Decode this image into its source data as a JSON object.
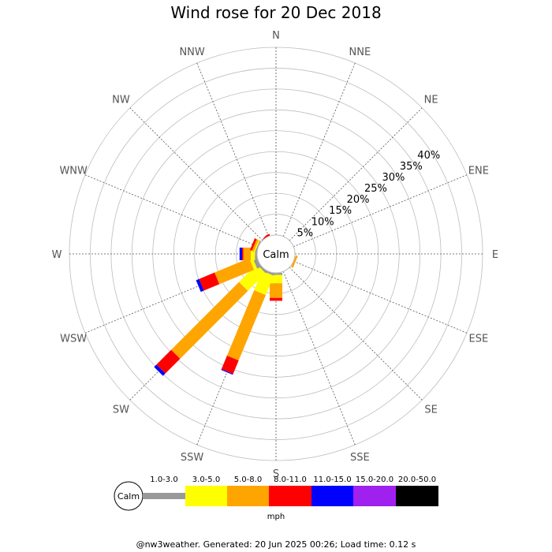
{
  "chart_data": {
    "type": "windrose",
    "title": "Wind rose for 20 Dec 2018",
    "directions": [
      "N",
      "NNE",
      "NE",
      "ENE",
      "E",
      "ESE",
      "SE",
      "SSE",
      "S",
      "SSW",
      "SW",
      "WSW",
      "W",
      "WNW",
      "NW",
      "NNW"
    ],
    "radial_ticks": [
      5,
      10,
      15,
      20,
      25,
      30,
      35,
      40
    ],
    "radial_tick_labels": [
      "5%",
      "10%",
      "15%",
      "20%",
      "25%",
      "30%",
      "35%",
      "40%"
    ],
    "radial_max": 45,
    "center_label": "Calm",
    "speed_bins": [
      "1.0-3.0",
      "3.0-5.0",
      "5.0-8.0",
      "8.0-11.0",
      "11.0-15.0",
      "15.0-20.0",
      "20.0-50.0"
    ],
    "speed_colors": [
      "#999999",
      "#ffff00",
      "#ffa500",
      "#ff0000",
      "#0000ff",
      "#a020f0",
      "#000000"
    ],
    "speed_unit": "mph",
    "series": [
      {
        "direction": "N",
        "values": [
          0,
          0,
          0,
          0,
          0,
          0,
          0
        ]
      },
      {
        "direction": "NNE",
        "values": [
          0,
          0,
          0,
          0,
          0,
          0,
          0
        ]
      },
      {
        "direction": "NE",
        "values": [
          0,
          0,
          0,
          0,
          0,
          0,
          0
        ]
      },
      {
        "direction": "ENE",
        "values": [
          0,
          0,
          0,
          0,
          0,
          0,
          0
        ]
      },
      {
        "direction": "E",
        "values": [
          0,
          0,
          0,
          0,
          0,
          0,
          0
        ]
      },
      {
        "direction": "ESE",
        "values": [
          0,
          0,
          0.5,
          0,
          0,
          0,
          0
        ]
      },
      {
        "direction": "SE",
        "values": [
          0,
          0,
          0,
          0,
          0,
          0,
          0
        ]
      },
      {
        "direction": "SSE",
        "values": [
          0,
          0,
          0,
          0,
          0,
          0,
          0
        ]
      },
      {
        "direction": "S",
        "values": [
          0.5,
          2.0,
          3.5,
          0.7,
          0,
          0,
          0
        ]
      },
      {
        "direction": "SSW",
        "values": [
          0.5,
          5.0,
          17.0,
          3.5,
          0.2,
          0,
          0
        ]
      },
      {
        "direction": "SW",
        "values": [
          0.5,
          6.0,
          23.0,
          5.0,
          0.8,
          0,
          0
        ]
      },
      {
        "direction": "WSW",
        "values": [
          1.0,
          0.8,
          9.0,
          4.0,
          0.8,
          0,
          0
        ]
      },
      {
        "direction": "W",
        "values": [
          0.5,
          1.0,
          1.8,
          0.3,
          0.6,
          0,
          0
        ]
      },
      {
        "direction": "WNW",
        "values": [
          0.3,
          0.3,
          0.5,
          0.5,
          0,
          0,
          0
        ]
      },
      {
        "direction": "NW",
        "values": [
          0,
          0,
          0,
          0,
          0,
          0,
          0
        ]
      },
      {
        "direction": "NNW",
        "values": [
          0,
          0,
          0,
          0,
          0,
          0,
          0
        ]
      }
    ],
    "grid": true,
    "legend_position": "bottom"
  },
  "footer": "@nw3weather. Generated: 20 Jun 2025 00:26; Load time: 0.12 s"
}
